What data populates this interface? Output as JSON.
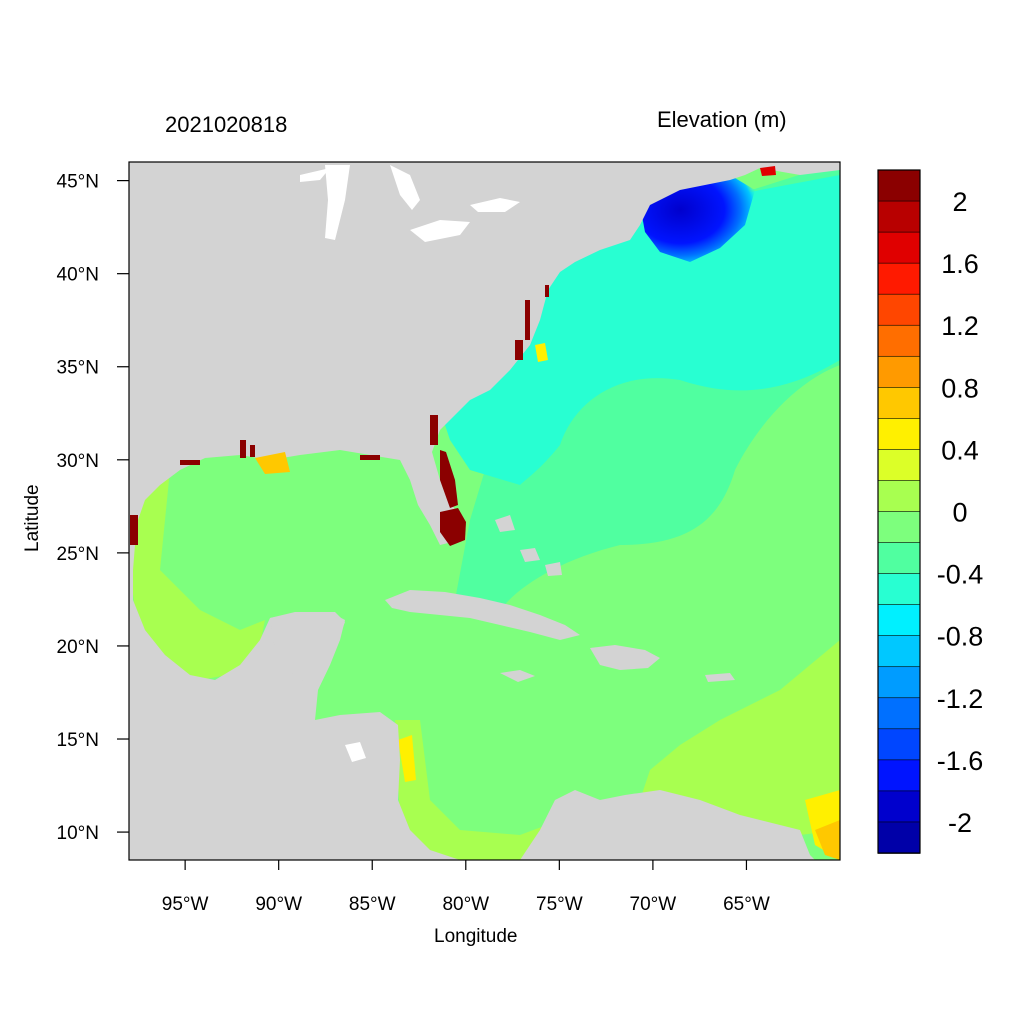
{
  "title_left": "2021020818",
  "title_right": "Elevation (m)",
  "axes": {
    "xlabel": "Longitude",
    "ylabel": "Latitude",
    "lon_range": [
      -98,
      -60
    ],
    "lat_range": [
      8.5,
      46
    ],
    "x_ticks": [
      {
        "lon": -95,
        "label": "95°W"
      },
      {
        "lon": -90,
        "label": "90°W"
      },
      {
        "lon": -85,
        "label": "85°W"
      },
      {
        "lon": -80,
        "label": "80°W"
      },
      {
        "lon": -75,
        "label": "75°W"
      },
      {
        "lon": -70,
        "label": "70°W"
      },
      {
        "lon": -65,
        "label": "65°W"
      }
    ],
    "y_ticks": [
      {
        "lat": 45,
        "label": "45°N"
      },
      {
        "lat": 40,
        "label": "40°N"
      },
      {
        "lat": 35,
        "label": "35°N"
      },
      {
        "lat": 30,
        "label": "30°N"
      },
      {
        "lat": 25,
        "label": "25°N"
      },
      {
        "lat": 20,
        "label": "20°N"
      },
      {
        "lat": 15,
        "label": "15°N"
      },
      {
        "lat": 10,
        "label": "10°N"
      }
    ]
  },
  "colorbar": {
    "colors_top_to_bottom": [
      "#8b0000",
      "#b80000",
      "#e00000",
      "#ff1a00",
      "#ff4600",
      "#ff6e00",
      "#ff9a00",
      "#ffc800",
      "#fff000",
      "#dcff28",
      "#a8ff50",
      "#7dff7d",
      "#50ffa0",
      "#28ffd2",
      "#00f0ff",
      "#00c8ff",
      "#009cff",
      "#0070ff",
      "#0046ff",
      "#0014ff",
      "#0000cd",
      "#0000a8"
    ],
    "labels": [
      "2",
      "1.6",
      "1.2",
      "0.8",
      "0.4",
      "0",
      "-0.4",
      "-0.8",
      "-1.2",
      "-1.6",
      "-2"
    ]
  },
  "colors": {
    "land": "#d3d3d3",
    "water_fill": "#7dff7d",
    "open_atlantic": "#50ffa0",
    "shelf": "#28ffd2",
    "gulf_of_maine": "#0000cd",
    "positive_shelf": "#a8ff50",
    "surge": "#8b0000"
  }
}
